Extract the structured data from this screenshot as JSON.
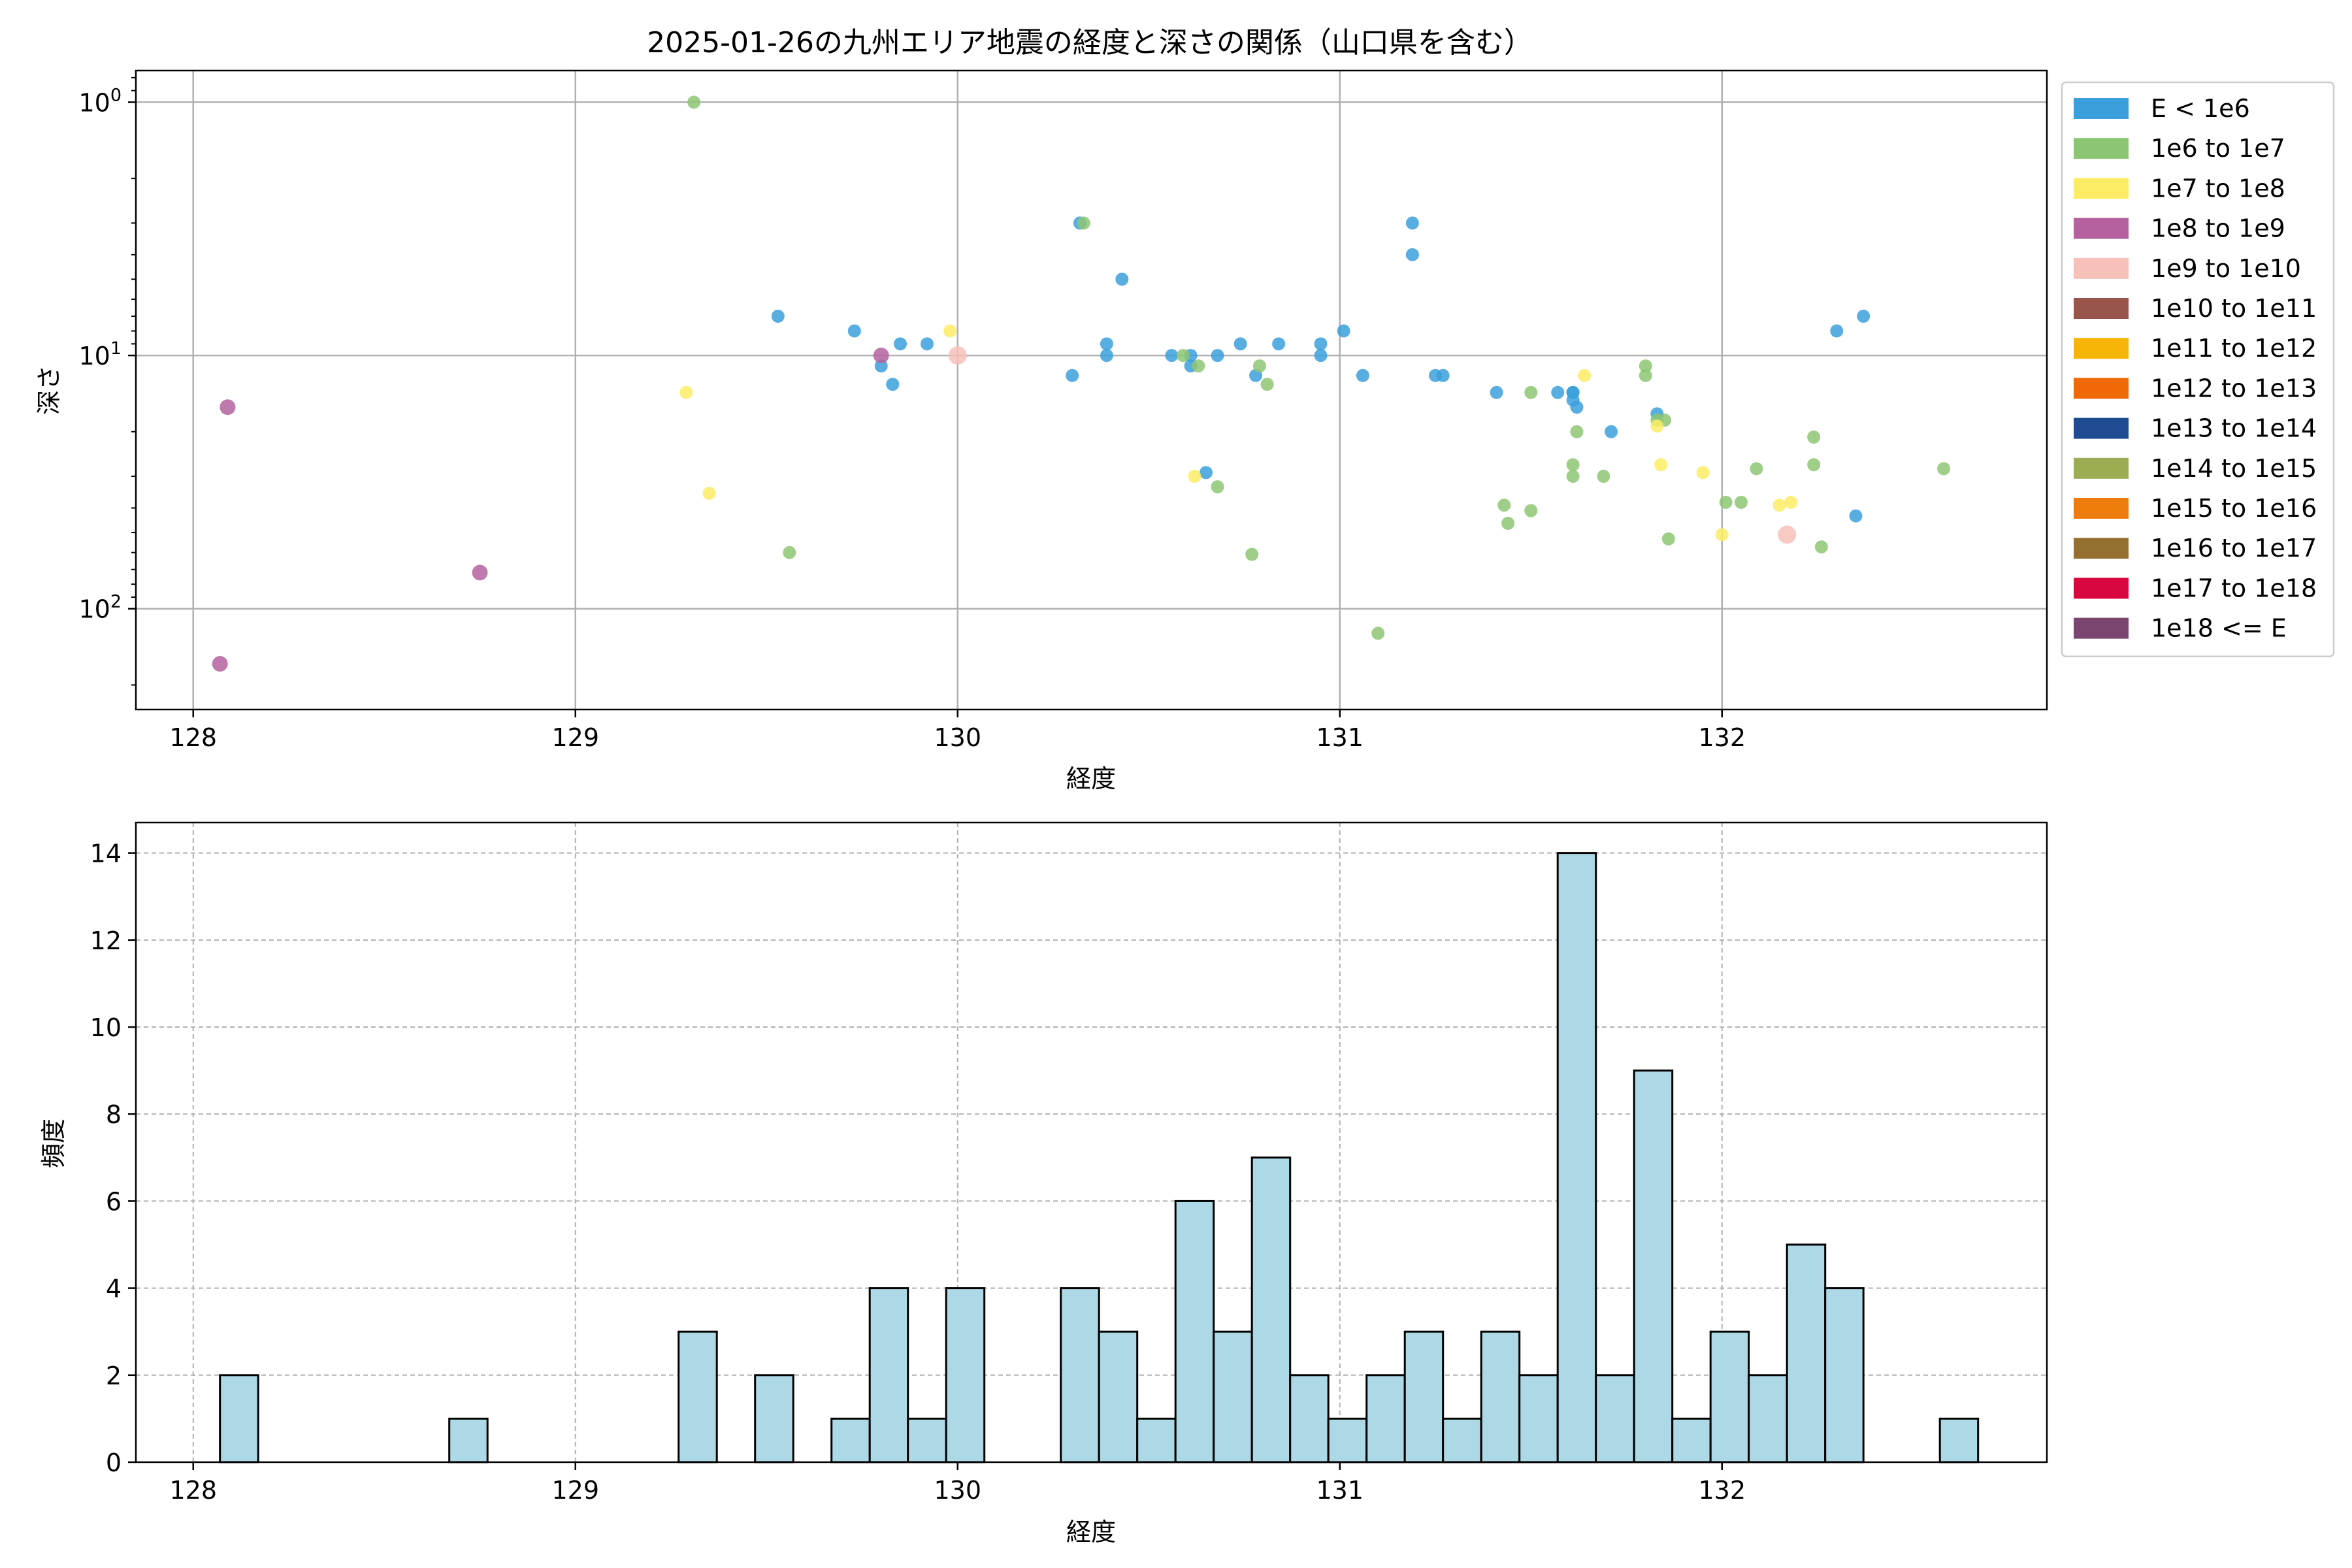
{
  "title": "2025-01-26の九州エリア地震の経度と深さの関係（山口県を含む）",
  "scatter": {
    "chart_data": {
      "type": "scatter",
      "xlabel": "経度",
      "ylabel": "深さ",
      "xlim": [
        127.85,
        132.85
      ],
      "ylim": [
        250,
        0.75
      ],
      "yscale": "log",
      "y_inverted": true,
      "grid": true,
      "legend_placement": "outside-right",
      "xticks": [
        128,
        129,
        130,
        131,
        132
      ],
      "xtick_labels": [
        "128",
        "129",
        "130",
        "131",
        "132"
      ],
      "yticks": [
        1,
        10,
        100
      ],
      "ytick_labels": [
        {
          "base": "10",
          "exp": "0"
        },
        {
          "base": "10",
          "exp": "1"
        },
        {
          "base": "10",
          "exp": "2"
        }
      ],
      "legend": [
        {
          "label": "E < 1e6",
          "color": "#3b9fdc"
        },
        {
          "label": "1e6 to 1e7",
          "color": "#8dc672"
        },
        {
          "label": "1e7 to 1e8",
          "color": "#fcec65"
        },
        {
          "label": "1e8 to 1e9",
          "color": "#b5619f"
        },
        {
          "label": "1e9 to 1e10",
          "color": "#f7c1b9"
        },
        {
          "label": "1e10 to 1e11",
          "color": "#99544c"
        },
        {
          "label": "1e11 to 1e12",
          "color": "#f6b506"
        },
        {
          "label": "1e12 to 1e13",
          "color": "#ef6a06"
        },
        {
          "label": "1e13 to 1e14",
          "color": "#1f4b92"
        },
        {
          "label": "1e14 to 1e15",
          "color": "#9bad52"
        },
        {
          "label": "1e15 to 1e16",
          "color": "#ee7c0c"
        },
        {
          "label": "1e16 to 1e17",
          "color": "#956f30"
        },
        {
          "label": "1e17 to 1e18",
          "color": "#d90640"
        },
        {
          "label": "1e18 <= E",
          "color": "#7b4571"
        }
      ],
      "series": [
        {
          "class": 0,
          "size": 5,
          "points": [
            [
              129.53,
              7
            ],
            [
              129.73,
              8
            ],
            [
              129.8,
              11
            ],
            [
              129.83,
              13
            ],
            [
              129.85,
              9
            ],
            [
              129.92,
              9
            ],
            [
              130.3,
              12
            ],
            [
              130.32,
              3
            ],
            [
              130.39,
              10
            ],
            [
              130.39,
              9
            ],
            [
              130.43,
              5
            ],
            [
              130.56,
              10
            ],
            [
              130.61,
              11
            ],
            [
              130.61,
              10
            ],
            [
              130.65,
              29
            ],
            [
              130.68,
              10
            ],
            [
              130.74,
              9
            ],
            [
              130.78,
              12
            ],
            [
              130.84,
              9
            ],
            [
              130.95,
              9
            ],
            [
              130.95,
              10
            ],
            [
              131.01,
              8
            ],
            [
              131.06,
              12
            ],
            [
              131.19,
              3
            ],
            [
              131.19,
              4
            ],
            [
              131.25,
              12
            ],
            [
              131.27,
              12
            ],
            [
              131.41,
              14
            ],
            [
              131.57,
              14
            ],
            [
              131.61,
              14
            ],
            [
              131.61,
              14
            ],
            [
              131.61,
              15
            ],
            [
              131.62,
              16
            ],
            [
              131.71,
              20
            ],
            [
              131.83,
              17
            ],
            [
              132.3,
              8
            ],
            [
              132.35,
              43
            ],
            [
              132.37,
              7
            ]
          ]
        },
        {
          "class": 1,
          "size": 5,
          "points": [
            [
              129.31,
              1
            ],
            [
              129.56,
              60
            ],
            [
              130.33,
              3
            ],
            [
              130.59,
              10
            ],
            [
              130.63,
              11
            ],
            [
              130.68,
              33
            ],
            [
              130.77,
              61
            ],
            [
              130.79,
              11
            ],
            [
              130.81,
              13
            ],
            [
              131.1,
              125
            ],
            [
              131.43,
              39
            ],
            [
              131.44,
              46
            ],
            [
              131.5,
              14
            ],
            [
              131.5,
              41
            ],
            [
              131.61,
              27
            ],
            [
              131.61,
              30
            ],
            [
              131.62,
              20
            ],
            [
              131.69,
              30
            ],
            [
              131.8,
              11
            ],
            [
              131.8,
              12
            ],
            [
              131.83,
              18
            ],
            [
              131.85,
              18
            ],
            [
              131.86,
              53
            ],
            [
              132.01,
              38
            ],
            [
              132.05,
              38
            ],
            [
              132.09,
              28
            ],
            [
              132.24,
              21
            ],
            [
              132.24,
              27
            ],
            [
              132.26,
              57
            ],
            [
              132.58,
              28
            ]
          ]
        },
        {
          "class": 2,
          "size": 5,
          "points": [
            [
              129.29,
              14
            ],
            [
              129.35,
              35
            ],
            [
              129.98,
              8
            ],
            [
              130.62,
              30
            ],
            [
              131.64,
              12
            ],
            [
              131.83,
              19
            ],
            [
              131.84,
              27
            ],
            [
              131.95,
              29
            ],
            [
              132.0,
              51
            ],
            [
              132.15,
              39
            ],
            [
              132.18,
              38
            ]
          ]
        },
        {
          "class": 3,
          "size": 6,
          "points": [
            [
              128.07,
              165
            ],
            [
              128.09,
              16
            ],
            [
              128.75,
              72
            ],
            [
              129.8,
              10
            ]
          ]
        },
        {
          "class": 4,
          "size": 7,
          "points": [
            [
              130.0,
              10
            ],
            [
              132.17,
              51
            ]
          ]
        }
      ]
    }
  },
  "histogram": {
    "chart_data": {
      "type": "bar",
      "xlabel": "経度",
      "ylabel": "頻度",
      "xlim": [
        127.85,
        132.85
      ],
      "ylim": [
        0,
        14.7
      ],
      "grid": true,
      "bar_color": "#add8e6",
      "edge_color": "#000000",
      "bin_start": 128.07,
      "bin_width": 0.1,
      "counts": [
        2,
        0,
        0,
        0,
        0,
        0,
        1,
        0,
        0,
        0,
        0,
        0,
        3,
        0,
        2,
        0,
        1,
        4,
        1,
        4,
        0,
        0,
        4,
        3,
        1,
        6,
        3,
        7,
        2,
        1,
        2,
        3,
        1,
        3,
        2,
        14,
        2,
        9,
        1,
        3,
        2,
        5,
        4,
        0,
        0,
        1
      ],
      "xticks": [
        128,
        129,
        130,
        131,
        132
      ],
      "xtick_labels": [
        "128",
        "129",
        "130",
        "131",
        "132"
      ],
      "yticks": [
        0,
        2,
        4,
        6,
        8,
        10,
        12,
        14
      ],
      "ytick_labels": [
        "0",
        "2",
        "4",
        "6",
        "8",
        "10",
        "12",
        "14"
      ]
    }
  }
}
